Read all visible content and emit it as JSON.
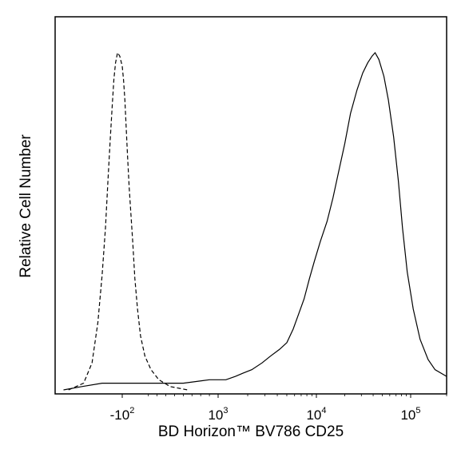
{
  "chart_data": {
    "type": "line",
    "title": "",
    "xlabel": "BD Horizon™ BV786 CD25",
    "ylabel": "Relative Cell Number",
    "xscale": "biexponential",
    "xlim": [
      -500,
      200000
    ],
    "ylim": [
      0,
      100
    ],
    "grid": false,
    "legend": "none",
    "x_ticks": [
      {
        "label_base": "-10",
        "label_exp": "2",
        "value": -100
      },
      {
        "label_base": "10",
        "label_exp": "3",
        "value": 1000
      },
      {
        "label_base": "10",
        "label_exp": "4",
        "value": 10000
      },
      {
        "label_base": "10",
        "label_exp": "5",
        "value": 100000
      }
    ],
    "series": [
      {
        "style": "dashed",
        "color": "#000000",
        "points": [
          [
            -420,
            0
          ],
          [
            -330,
            2
          ],
          [
            -280,
            8
          ],
          [
            -245,
            20
          ],
          [
            -220,
            34
          ],
          [
            -200,
            48
          ],
          [
            -185,
            62
          ],
          [
            -172,
            74
          ],
          [
            -160,
            84
          ],
          [
            -150,
            92
          ],
          [
            -140,
            97
          ],
          [
            -128,
            100
          ],
          [
            -115,
            99
          ],
          [
            -100,
            96
          ],
          [
            -85,
            92
          ],
          [
            -70,
            86
          ],
          [
            -55,
            78
          ],
          [
            -40,
            70
          ],
          [
            -20,
            60
          ],
          [
            0,
            52
          ],
          [
            20,
            44
          ],
          [
            45,
            33
          ],
          [
            75,
            24
          ],
          [
            110,
            16
          ],
          [
            160,
            10
          ],
          [
            230,
            6
          ],
          [
            320,
            3
          ],
          [
            450,
            1
          ],
          [
            650,
            0
          ]
        ]
      },
      {
        "style": "solid",
        "color": "#000000",
        "points": [
          [
            -450,
            0
          ],
          [
            -340,
            1
          ],
          [
            -220,
            2
          ],
          [
            -100,
            2
          ],
          [
            50,
            2
          ],
          [
            250,
            2
          ],
          [
            600,
            2
          ],
          [
            900,
            3
          ],
          [
            1200,
            3
          ],
          [
            1500,
            4
          ],
          [
            1800,
            5
          ],
          [
            2200,
            6
          ],
          [
            2800,
            8
          ],
          [
            3400,
            10
          ],
          [
            4200,
            12
          ],
          [
            5000,
            14
          ],
          [
            5800,
            18
          ],
          [
            6500,
            22
          ],
          [
            7500,
            27
          ],
          [
            8500,
            33
          ],
          [
            9500,
            38
          ],
          [
            11000,
            44
          ],
          [
            13000,
            50
          ],
          [
            15000,
            57
          ],
          [
            17000,
            64
          ],
          [
            20000,
            73
          ],
          [
            23000,
            82
          ],
          [
            27000,
            89
          ],
          [
            31000,
            94
          ],
          [
            35000,
            97
          ],
          [
            39000,
            99
          ],
          [
            42000,
            100
          ],
          [
            46000,
            98
          ],
          [
            52000,
            93
          ],
          [
            58000,
            86
          ],
          [
            66000,
            75
          ],
          [
            74000,
            62
          ],
          [
            82000,
            48
          ],
          [
            92000,
            35
          ],
          [
            105000,
            24
          ],
          [
            120000,
            15
          ],
          [
            140000,
            9
          ],
          [
            160000,
            6
          ],
          [
            200000,
            4
          ]
        ]
      }
    ]
  }
}
